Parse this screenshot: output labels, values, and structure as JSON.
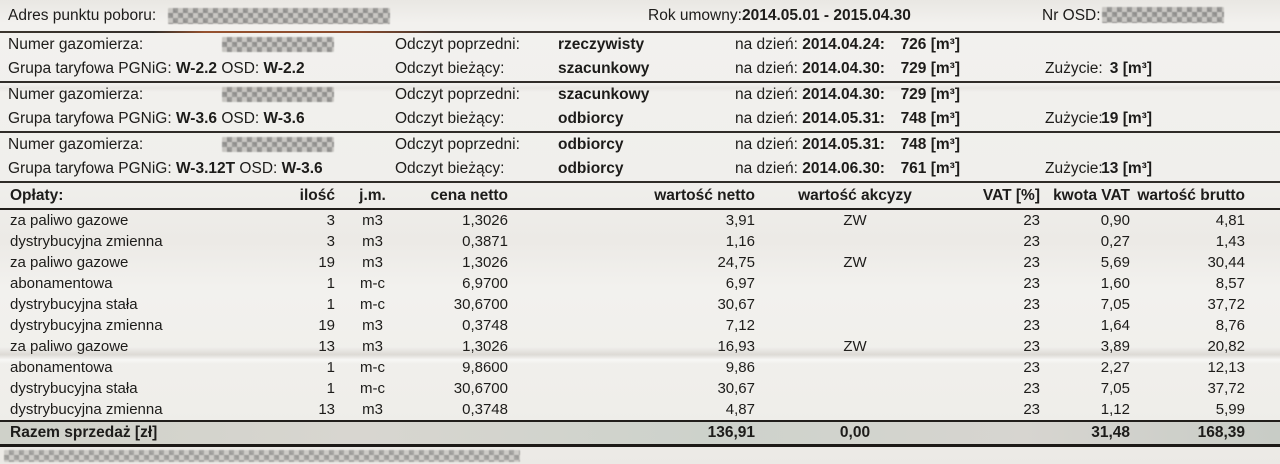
{
  "header": {
    "address_label": "Adres punktu poboru:",
    "contract_label": "Rok umowny:",
    "contract_value": "2014.05.01 - 2015.04.30",
    "osd_label": "Nr OSD:"
  },
  "meters": [
    {
      "meter_label": "Numer gazomierza:",
      "tariff_label": "Grupa taryfowa PGNiG:",
      "tariff_pgnig": "W-2.2",
      "osd_label": "OSD:",
      "tariff_osd": "W-2.2",
      "prev_label": "Odczyt poprzedni:",
      "prev_type": "rzeczywisty",
      "curr_label": "Odczyt bieżący:",
      "curr_type": "szacunkowy",
      "date_label": "na dzień:",
      "prev_date": "2014.04.24:",
      "prev_value": "726 [m³]",
      "curr_date": "2014.04.30:",
      "curr_value": "729 [m³]",
      "usage_label": "Zużycie:",
      "usage_value": "3 [m³]"
    },
    {
      "meter_label": "Numer gazomierza:",
      "tariff_label": "Grupa taryfowa PGNiG:",
      "tariff_pgnig": "W-3.6",
      "osd_label": "OSD:",
      "tariff_osd": "W-3.6",
      "prev_label": "Odczyt poprzedni:",
      "prev_type": "szacunkowy",
      "curr_label": "Odczyt bieżący:",
      "curr_type": "odbiorcy",
      "date_label": "na dzień:",
      "prev_date": "2014.04.30:",
      "prev_value": "729 [m³]",
      "curr_date": "2014.05.31:",
      "curr_value": "748 [m³]",
      "usage_label": "Zużycie:",
      "usage_value": "19 [m³]"
    },
    {
      "meter_label": "Numer gazomierza:",
      "tariff_label": "Grupa taryfowa PGNiG:",
      "tariff_pgnig": "W-3.12T",
      "osd_label": "OSD:",
      "tariff_osd": "W-3.6",
      "prev_label": "Odczyt poprzedni:",
      "prev_type": "odbiorcy",
      "curr_label": "Odczyt bieżący:",
      "curr_type": "odbiorcy",
      "date_label": "na dzień:",
      "prev_date": "2014.05.31:",
      "prev_value": "748 [m³]",
      "curr_date": "2014.06.30:",
      "curr_value": "761 [m³]",
      "usage_label": "Zużycie:",
      "usage_value": "13 [m³]"
    }
  ],
  "charges": {
    "headers": [
      "Opłaty:",
      "ilość",
      "j.m.",
      "cena netto",
      "wartość netto",
      "wartość akcyzy",
      "VAT [%]",
      "kwota VAT",
      "wartość brutto"
    ],
    "rows": [
      [
        "za paliwo gazowe",
        "3",
        "m3",
        "1,3026",
        "3,91",
        "ZW",
        "23",
        "0,90",
        "4,81"
      ],
      [
        "dystrybucyjna zmienna",
        "3",
        "m3",
        "0,3871",
        "1,16",
        "",
        "23",
        "0,27",
        "1,43"
      ],
      [
        "za paliwo gazowe",
        "19",
        "m3",
        "1,3026",
        "24,75",
        "ZW",
        "23",
        "5,69",
        "30,44"
      ],
      [
        "abonamentowa",
        "1",
        "m-c",
        "6,9700",
        "6,97",
        "",
        "23",
        "1,60",
        "8,57"
      ],
      [
        "dystrybucyjna stała",
        "1",
        "m-c",
        "30,6700",
        "30,67",
        "",
        "23",
        "7,05",
        "37,72"
      ],
      [
        "dystrybucyjna zmienna",
        "19",
        "m3",
        "0,3748",
        "7,12",
        "",
        "23",
        "1,64",
        "8,76"
      ],
      [
        "za paliwo gazowe",
        "13",
        "m3",
        "1,3026",
        "16,93",
        "ZW",
        "23",
        "3,89",
        "20,82"
      ],
      [
        "abonamentowa",
        "1",
        "m-c",
        "9,8600",
        "9,86",
        "",
        "23",
        "2,27",
        "12,13"
      ],
      [
        "dystrybucyjna stała",
        "1",
        "m-c",
        "30,6700",
        "30,67",
        "",
        "23",
        "7,05",
        "37,72"
      ],
      [
        "dystrybucyjna zmienna",
        "13",
        "m3",
        "0,3748",
        "4,87",
        "",
        "23",
        "1,12",
        "5,99"
      ]
    ],
    "total": {
      "label": "Razem sprzedaż [zł]",
      "netto": "136,91",
      "akcyza": "0,00",
      "vat": "31,48",
      "brutto": "168,39"
    }
  },
  "colors": {
    "paper": "#f1efec",
    "rule": "#2f2c28",
    "accent_rule": "#96522f",
    "total_band": "#d3d5cd"
  }
}
